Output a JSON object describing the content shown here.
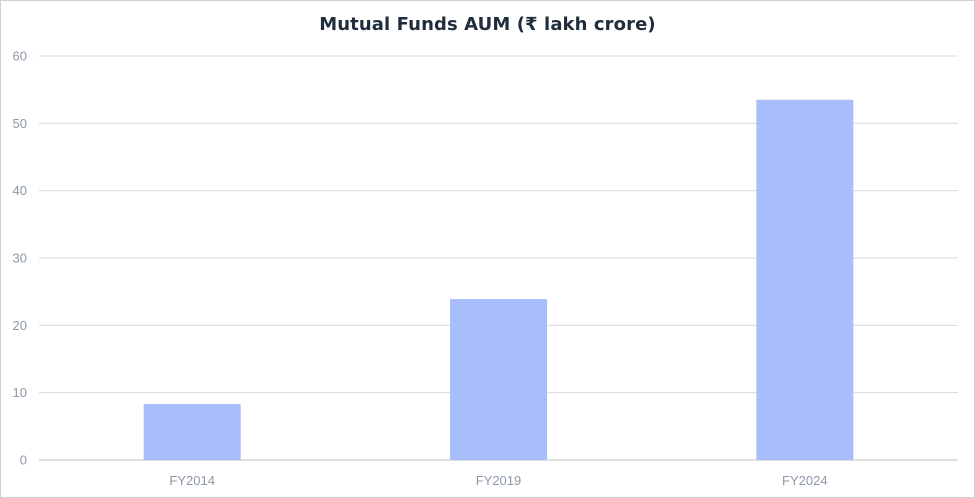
{
  "chart_data": {
    "type": "bar",
    "title": "Mutual Funds AUM (₹ lakh crore)",
    "xlabel": "",
    "ylabel": "",
    "categories": [
      "FY2014",
      "FY2019",
      "FY2024"
    ],
    "values": [
      8.3,
      23.9,
      53.5
    ],
    "ylim": [
      0,
      60
    ],
    "yticks": [
      0,
      10,
      20,
      30,
      40,
      50,
      60
    ],
    "grid": true,
    "legend": "none",
    "bar_color": "#a7bdfc"
  }
}
